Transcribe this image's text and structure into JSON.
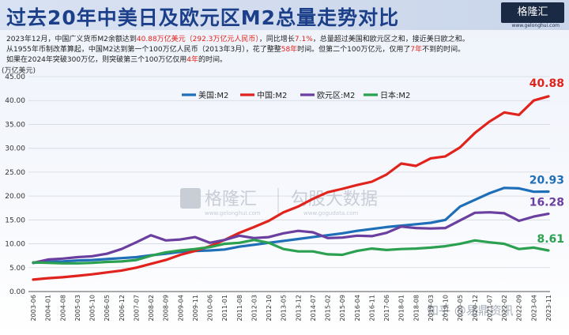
{
  "header": {
    "title": "过去20年中美日及欧元区M2总量走势对比",
    "logo_text": "格隆汇",
    "logo_sub": "www.gelonghui.com"
  },
  "description": {
    "line1_a": "2023年12月，中国广义货币M2余额达到",
    "line1_red1": "40.88万亿美元（292.3万亿元人民币）",
    "line1_b": "，同比增长",
    "line1_red2": "7.1%",
    "line1_c": "，总量超过美国和欧元区之和，接近美日欧之和。",
    "line2_a": "从1955年币制改革算起，中国M2达到第一个100万亿人民币（2013年3月），花了整整",
    "line2_red1": "58年",
    "line2_b": "时间。但第二个100万亿元，仅用了",
    "line2_red2": "7年",
    "line2_c": "不到的时间。",
    "line3_a": "如果在2024年突破300万亿，则突破第三个100万亿仅用",
    "line3_red": "4年",
    "line3_b": "的时间。"
  },
  "watermarks": {
    "logo": "格隆汇",
    "logo_sub": "www.gelonghui.com",
    "gogu": "勾股大数据",
    "gogu_sub": "www.gogudata.com",
    "corner": "知乎 @易鼎资讯"
  },
  "chart_data": {
    "type": "line",
    "ylabel": "(万亿美元)",
    "ylim": [
      0,
      45
    ],
    "yticks": [
      0.0,
      5.0,
      10.0,
      15.0,
      20.0,
      25.0,
      30.0,
      35.0,
      40.0,
      45.0
    ],
    "x": [
      "2003-06",
      "2004-01",
      "2004-08",
      "2005-03",
      "2005-10",
      "2006-05",
      "2006-12",
      "2007-07",
      "2008-02",
      "2008-09",
      "2009-04",
      "2009-11",
      "2010-06",
      "2011-01",
      "2011-08",
      "2012-03",
      "2012-10",
      "2013-05",
      "2013-12",
      "2014-07",
      "2015-02",
      "2015-09",
      "2016-04",
      "2016-11",
      "2017-06",
      "2018-01",
      "2018-08",
      "2019-03",
      "2019-10",
      "2020-05",
      "2020-12",
      "2021-07",
      "2022-02",
      "2022-09",
      "2023-04",
      "2023-11"
    ],
    "legend_position": "top-center",
    "grid": true,
    "series": [
      {
        "name": "美国:M2",
        "color": "#1f6fb8",
        "end_label": "20.93",
        "values": [
          6.0,
          6.2,
          6.3,
          6.5,
          6.6,
          6.8,
          7.0,
          7.2,
          7.6,
          7.9,
          8.3,
          8.5,
          8.6,
          8.8,
          9.4,
          9.8,
          10.2,
          10.6,
          11.0,
          11.4,
          11.8,
          12.2,
          12.7,
          13.1,
          13.5,
          13.8,
          14.1,
          14.4,
          15.0,
          17.8,
          19.2,
          20.6,
          21.7,
          21.6,
          20.9,
          20.93
        ]
      },
      {
        "name": "中国:M2",
        "color": "#e0231c",
        "end_label": "40.88",
        "values": [
          2.5,
          2.8,
          3.0,
          3.3,
          3.6,
          4.0,
          4.4,
          5.0,
          5.8,
          6.6,
          7.7,
          8.5,
          9.5,
          10.8,
          12.3,
          13.5,
          14.8,
          16.6,
          17.8,
          19.4,
          20.8,
          21.5,
          22.3,
          23.0,
          24.5,
          26.8,
          26.3,
          27.9,
          28.3,
          30.2,
          33.2,
          35.6,
          37.5,
          37.0,
          40.0,
          40.88
        ]
      },
      {
        "name": "欧元区:M2",
        "color": "#6a3fa0",
        "end_label": "16.28",
        "values": [
          6.0,
          6.7,
          6.9,
          7.2,
          7.4,
          7.9,
          8.9,
          10.3,
          11.8,
          10.7,
          10.9,
          11.4,
          10.2,
          10.8,
          11.7,
          11.2,
          11.4,
          12.2,
          12.7,
          12.4,
          11.2,
          11.3,
          11.7,
          11.6,
          12.3,
          13.6,
          13.3,
          13.2,
          13.3,
          14.9,
          16.5,
          16.6,
          16.4,
          14.8,
          15.7,
          16.28
        ]
      },
      {
        "name": "日本:M2",
        "color": "#2aa050",
        "end_label": "8.61",
        "values": [
          6.1,
          6.0,
          5.9,
          5.9,
          6.0,
          6.2,
          6.3,
          6.6,
          7.5,
          8.2,
          8.6,
          8.9,
          9.3,
          10.0,
          10.2,
          10.8,
          10.2,
          8.9,
          8.4,
          8.4,
          7.8,
          7.7,
          8.5,
          9.0,
          8.7,
          8.9,
          9.0,
          9.2,
          9.5,
          10.0,
          10.7,
          10.3,
          10.0,
          8.9,
          9.2,
          8.61
        ]
      }
    ]
  }
}
